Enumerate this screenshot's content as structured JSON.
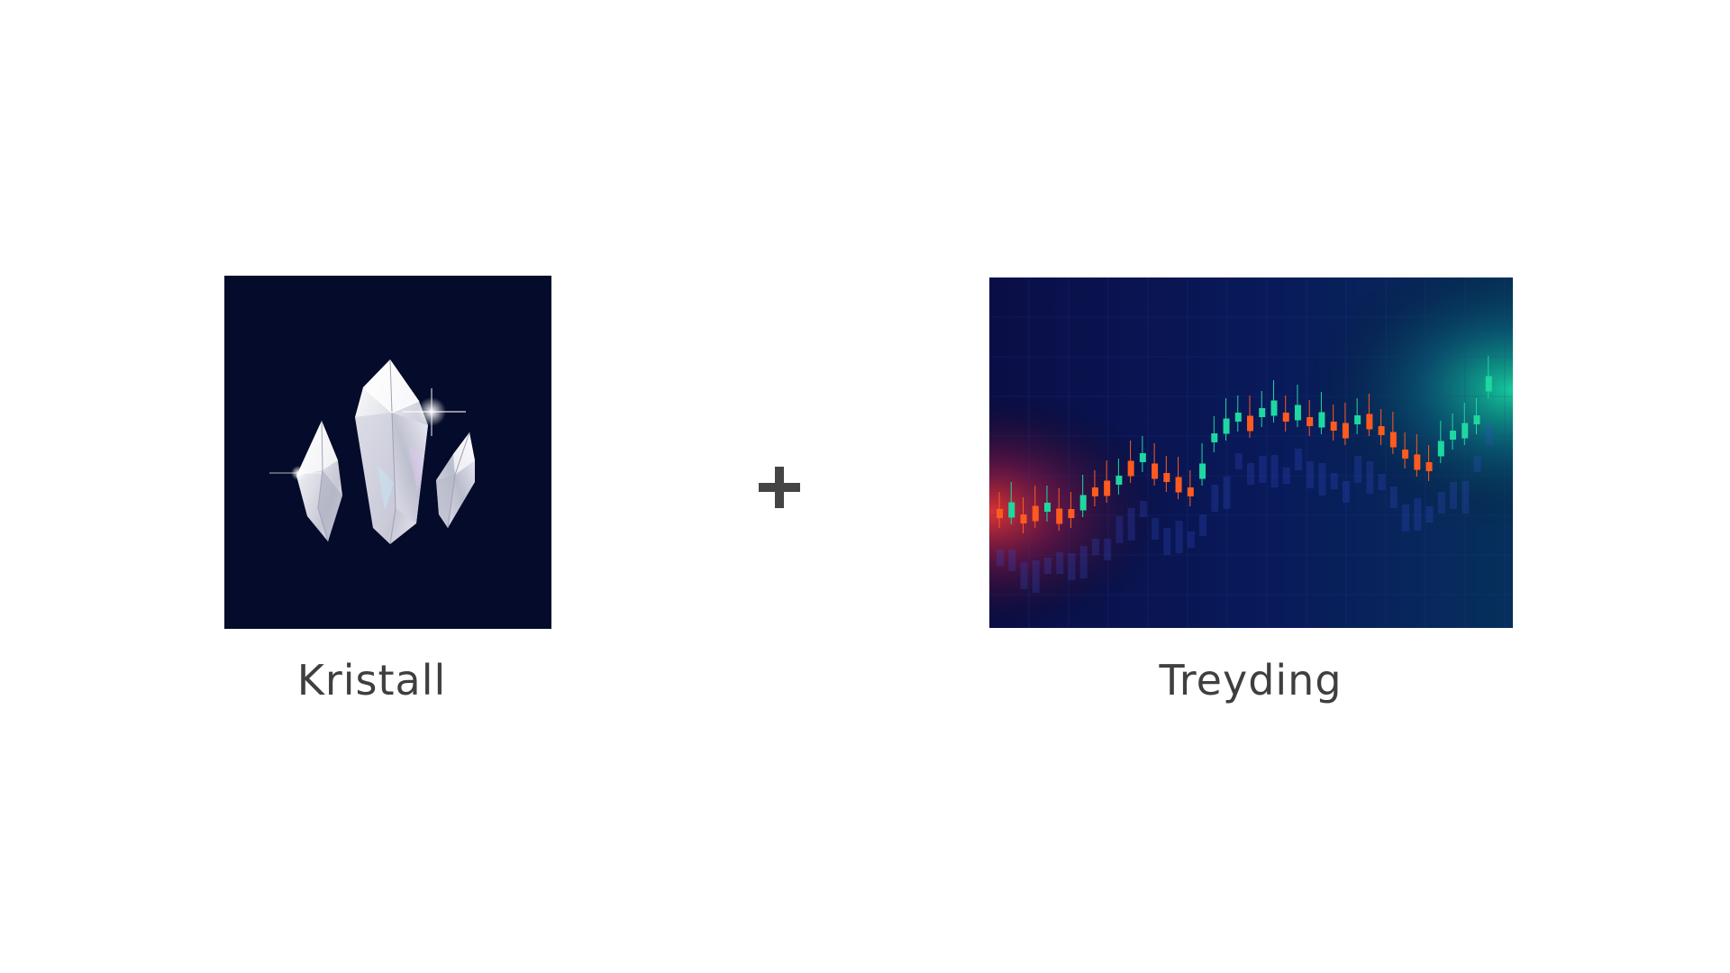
{
  "slide": {
    "left_item": {
      "label": "Kristall",
      "icon": "crystal-cluster-icon"
    },
    "operator": {
      "symbol": "+",
      "icon": "plus-icon"
    },
    "right_item": {
      "label": "Treyding",
      "icon": "candlestick-chart-icon"
    }
  },
  "colors": {
    "background": "#ffffff",
    "caption_text": "#3f3f3f",
    "crystal_tile_bg": "#050b2a",
    "chart_tile_bg": "#08124a",
    "candle_up": "#1fd7a0",
    "candle_down": "#ff5a1f",
    "plus_color": "#444444"
  }
}
